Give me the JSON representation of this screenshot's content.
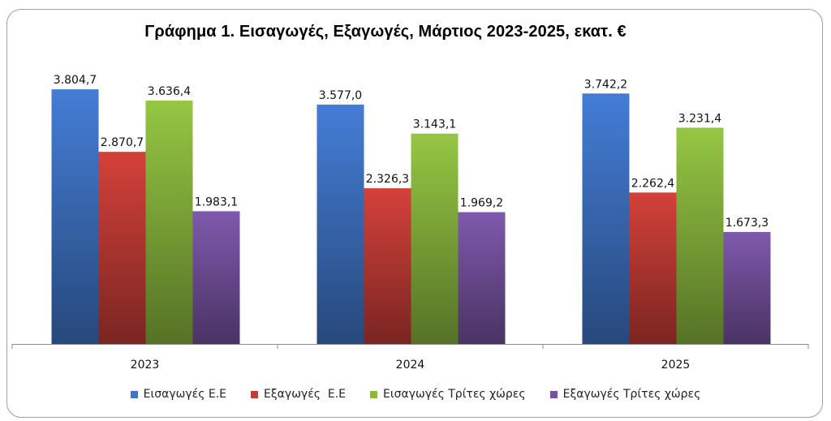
{
  "chart_data": {
    "type": "bar",
    "title": "Γράφημα 1. Εισαγωγές, Εξαγωγές, Μάρτιος 2023-2025, εκατ. €",
    "categories": [
      "2023",
      "2024",
      "2025"
    ],
    "series": [
      {
        "name": "Εισαγωγές Ε.Ε",
        "color": "#3f74c6",
        "values": [
          3804.7,
          3577.0,
          3742.2
        ],
        "labels": [
          "3.804,7",
          "3.577,0",
          "3.742,2"
        ]
      },
      {
        "name": "Εξαγωγές  Ε.Ε",
        "color": "#c43c36",
        "values": [
          2870.7,
          2326.3,
          2262.4
        ],
        "labels": [
          "2.870,7",
          "2.326,3",
          "2.262,4"
        ]
      },
      {
        "name": "Εισαγωγές Τρίτες χώρες",
        "color": "#8ab83e",
        "values": [
          3636.4,
          3143.1,
          3231.4
        ],
        "labels": [
          "3.636,4",
          "3.143,1",
          "3.231,4"
        ]
      },
      {
        "name": "Εξαγωγές Τρίτες χώρες",
        "color": "#7652a0",
        "values": [
          1983.1,
          1969.2,
          1673.3
        ],
        "labels": [
          "1.983,1",
          "1.969,2",
          "1.673,3"
        ]
      }
    ],
    "ylim": [
      0,
      4000
    ],
    "grid": false,
    "legend_position": "bottom"
  }
}
